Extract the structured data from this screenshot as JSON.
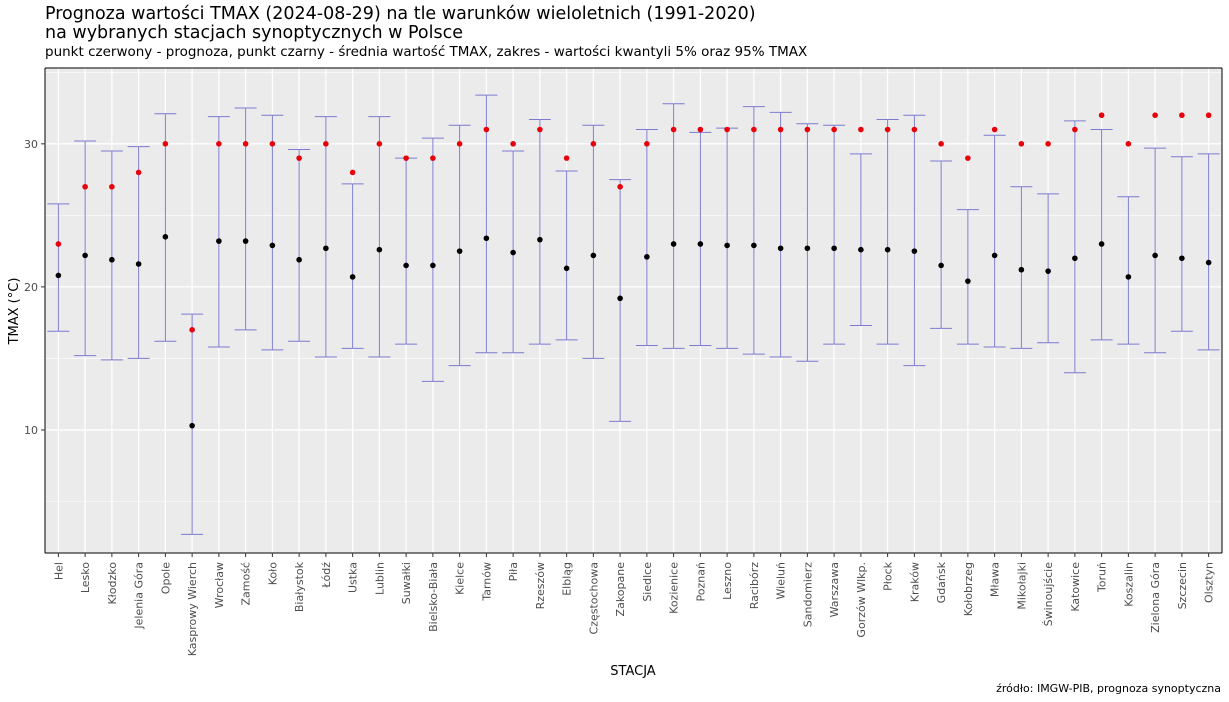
{
  "chart_data": {
    "type": "errorbar",
    "title": "Prognoza wartości TMAX (2024-08-29) na tle warunków wieloletnich (1991-2020)",
    "title_line2": "na wybranych stacjach synoptycznych w Polsce",
    "subtitle": "punkt czerwony - prognoza, punkt czarny - średnia wartość TMAX, zakres - wartości kwantyli 5% oraz 95% TMAX",
    "caption": "źródło: IMGW-PIB, prognoza synoptyczna",
    "xlabel": "STACJA",
    "ylabel": "TMAX (°C)",
    "ylim": [
      1.4,
      35.3
    ],
    "yticks": [
      10,
      20,
      30
    ],
    "grid": true,
    "colors": {
      "forecast": "#e8000b",
      "mean": "#000000",
      "range": "#7b7bd0",
      "panel": "#ebebeb",
      "grid": "#ffffff"
    },
    "categories": [
      "Hel",
      "Lesko",
      "Kłodzko",
      "Jelenia Góra",
      "Opole",
      "Kasprowy Wierch",
      "Wrocław",
      "Zamość",
      "Koło",
      "Białystok",
      "Łódź",
      "Ustka",
      "Lublin",
      "Suwałki",
      "Bielsko-Biała",
      "Kielce",
      "Tarnów",
      "Piła",
      "Rzeszów",
      "Elbląg",
      "Częstochowa",
      "Zakopane",
      "Siedlce",
      "Kozienice",
      "Poznań",
      "Leszno",
      "Racibórz",
      "Wieluń",
      "Sandomierz",
      "Warszawa",
      "Gorzów Wlkp.",
      "Płock",
      "Kraków",
      "Gdańsk",
      "Kołobrzeg",
      "Mława",
      "Mikołajki",
      "Świnoujście",
      "Katowice",
      "Toruń",
      "Koszalin",
      "Zielona Góra",
      "Szczecin",
      "Olsztyn"
    ],
    "series": [
      {
        "name": "prognoza",
        "values": [
          23,
          27,
          27,
          28,
          30,
          17,
          30,
          30,
          30,
          29,
          30,
          28,
          30,
          29,
          29,
          30,
          31,
          30,
          31,
          29,
          30,
          27,
          30,
          31,
          31,
          31,
          31,
          31,
          31,
          31,
          31,
          31,
          31,
          30,
          29,
          31,
          30,
          30,
          31,
          32,
          30,
          32,
          32,
          32
        ]
      },
      {
        "name": "średnia",
        "values": [
          20.8,
          22.2,
          21.9,
          21.6,
          23.5,
          10.3,
          23.2,
          23.2,
          22.9,
          21.9,
          22.7,
          20.7,
          22.6,
          21.5,
          21.5,
          22.5,
          23.4,
          22.4,
          23.3,
          21.3,
          22.2,
          19.2,
          22.1,
          23.0,
          23.0,
          22.9,
          22.9,
          22.7,
          22.7,
          22.7,
          22.6,
          22.6,
          22.5,
          21.5,
          20.4,
          22.2,
          21.2,
          21.1,
          22.0,
          23.0,
          20.7,
          22.2,
          22.0,
          21.7
        ]
      },
      {
        "name": "kwantyl 5%",
        "values": [
          16.9,
          15.2,
          14.9,
          15.0,
          16.2,
          2.7,
          15.8,
          17.0,
          15.6,
          16.2,
          15.1,
          15.7,
          15.1,
          16.0,
          13.4,
          14.5,
          15.4,
          15.4,
          16.0,
          16.3,
          15.0,
          10.6,
          15.9,
          15.7,
          15.9,
          15.7,
          15.3,
          15.1,
          14.8,
          16.0,
          17.3,
          16.0,
          14.5,
          17.1,
          16.0,
          15.8,
          15.7,
          16.1,
          14.0,
          16.3,
          16.0,
          15.4,
          16.9,
          15.6
        ]
      },
      {
        "name": "kwantyl 95%",
        "values": [
          25.8,
          30.2,
          29.5,
          29.8,
          32.1,
          18.1,
          31.9,
          32.5,
          32.0,
          29.6,
          31.9,
          27.2,
          31.9,
          29.0,
          30.4,
          31.3,
          33.4,
          29.5,
          31.7,
          28.1,
          31.3,
          27.5,
          31.0,
          32.8,
          30.8,
          31.1,
          32.6,
          32.2,
          31.4,
          31.3,
          29.3,
          31.7,
          32.0,
          28.8,
          25.4,
          30.6,
          27.0,
          26.5,
          31.6,
          31.0,
          26.3,
          29.7,
          29.1,
          29.3
        ]
      }
    ]
  }
}
